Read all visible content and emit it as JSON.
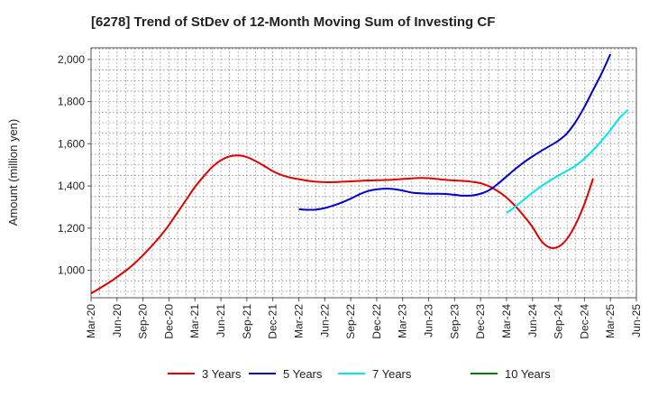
{
  "chart_data": {
    "type": "line",
    "title": "[6278]  Trend of StDev of 12-Month Moving Sum of Investing CF",
    "ylabel": "Amount (million yen)",
    "xlabel": "",
    "ylim": [
      870,
      2055
    ],
    "yticks": [
      1000,
      1200,
      1400,
      1600,
      1800,
      2000
    ],
    "ytick_labels": [
      "1,000",
      "1,200",
      "1,400",
      "1,600",
      "1,800",
      "2,000"
    ],
    "x_labels": [
      "Mar-20",
      "Jun-20",
      "Sep-20",
      "Dec-20",
      "Mar-21",
      "Jun-21",
      "Sep-21",
      "Dec-21",
      "Mar-22",
      "Jun-22",
      "Sep-22",
      "Dec-22",
      "Mar-23",
      "Jun-23",
      "Sep-23",
      "Dec-23",
      "Mar-24",
      "Jun-24",
      "Sep-24",
      "Dec-24",
      "Mar-25",
      "Jun-25"
    ],
    "grid": true,
    "legend_position": "bottom",
    "series": [
      {
        "name": "3 Years",
        "color": "#e00000",
        "points": [
          [
            "Mar-20",
            890
          ],
          [
            "Apr-20",
            915
          ],
          [
            "May-20",
            940
          ],
          [
            "Jun-20",
            968
          ],
          [
            "Jul-20",
            998
          ],
          [
            "Aug-20",
            1032
          ],
          [
            "Sep-20",
            1072
          ],
          [
            "Oct-20",
            1115
          ],
          [
            "Nov-20",
            1162
          ],
          [
            "Dec-20",
            1215
          ],
          [
            "Jan-21",
            1275
          ],
          [
            "Feb-21",
            1335
          ],
          [
            "Mar-21",
            1395
          ],
          [
            "Apr-21",
            1445
          ],
          [
            "May-21",
            1490
          ],
          [
            "Jun-21",
            1522
          ],
          [
            "Jul-21",
            1540
          ],
          [
            "Aug-21",
            1545
          ],
          [
            "Sep-21",
            1537
          ],
          [
            "Oct-21",
            1518
          ],
          [
            "Nov-21",
            1495
          ],
          [
            "Dec-21",
            1470
          ],
          [
            "Jan-22",
            1452
          ],
          [
            "Feb-22",
            1440
          ],
          [
            "Mar-22",
            1432
          ],
          [
            "Apr-22",
            1425
          ],
          [
            "May-22",
            1420
          ],
          [
            "Jun-22",
            1418
          ],
          [
            "Jul-22",
            1418
          ],
          [
            "Aug-22",
            1420
          ],
          [
            "Sep-22",
            1422
          ],
          [
            "Oct-22",
            1424
          ],
          [
            "Nov-22",
            1426
          ],
          [
            "Dec-22",
            1427
          ],
          [
            "Jan-23",
            1428
          ],
          [
            "Feb-23",
            1430
          ],
          [
            "Mar-23",
            1433
          ],
          [
            "Apr-23",
            1436
          ],
          [
            "May-23",
            1438
          ],
          [
            "Jun-23",
            1437
          ],
          [
            "Jul-23",
            1433
          ],
          [
            "Aug-23",
            1429
          ],
          [
            "Sep-23",
            1426
          ],
          [
            "Oct-23",
            1424
          ],
          [
            "Nov-23",
            1420
          ],
          [
            "Dec-23",
            1413
          ],
          [
            "Jan-24",
            1398
          ],
          [
            "Feb-24",
            1375
          ],
          [
            "Mar-24",
            1345
          ],
          [
            "Apr-24",
            1305
          ],
          [
            "May-24",
            1258
          ],
          [
            "Jun-24",
            1205
          ],
          [
            "Jul-24",
            1140
          ],
          [
            "Aug-24",
            1108
          ],
          [
            "Sep-24",
            1112
          ],
          [
            "Oct-24",
            1150
          ],
          [
            "Nov-24",
            1220
          ],
          [
            "Dec-24",
            1315
          ],
          [
            "Jan-25",
            1435
          ]
        ]
      },
      {
        "name": "5 Years",
        "color": "#0000cc",
        "points": [
          [
            "Mar-22",
            1290
          ],
          [
            "Apr-22",
            1287
          ],
          [
            "May-22",
            1288
          ],
          [
            "Jun-22",
            1295
          ],
          [
            "Jul-22",
            1307
          ],
          [
            "Aug-22",
            1322
          ],
          [
            "Sep-22",
            1340
          ],
          [
            "Oct-22",
            1360
          ],
          [
            "Nov-22",
            1376
          ],
          [
            "Dec-22",
            1384
          ],
          [
            "Jan-23",
            1387
          ],
          [
            "Feb-23",
            1385
          ],
          [
            "Mar-23",
            1378
          ],
          [
            "Apr-23",
            1369
          ],
          [
            "May-23",
            1365
          ],
          [
            "Jun-23",
            1363
          ],
          [
            "Jul-23",
            1363
          ],
          [
            "Aug-23",
            1362
          ],
          [
            "Sep-23",
            1358
          ],
          [
            "Oct-23",
            1354
          ],
          [
            "Nov-23",
            1355
          ],
          [
            "Dec-23",
            1363
          ],
          [
            "Jan-24",
            1380
          ],
          [
            "Feb-24",
            1410
          ],
          [
            "Mar-24",
            1445
          ],
          [
            "Apr-24",
            1480
          ],
          [
            "May-24",
            1512
          ],
          [
            "Jun-24",
            1540
          ],
          [
            "Jul-24",
            1566
          ],
          [
            "Aug-24",
            1590
          ],
          [
            "Sep-24",
            1615
          ],
          [
            "Oct-24",
            1650
          ],
          [
            "Nov-24",
            1705
          ],
          [
            "Dec-24",
            1775
          ],
          [
            "Jan-25",
            1855
          ],
          [
            "Feb-25",
            1935
          ],
          [
            "Mar-25",
            2025
          ]
        ]
      },
      {
        "name": "7 Years",
        "color": "#00e5ee",
        "points": [
          [
            "Mar-24",
            1272
          ],
          [
            "Apr-24",
            1302
          ],
          [
            "May-24",
            1335
          ],
          [
            "Jun-24",
            1368
          ],
          [
            "Jul-24",
            1398
          ],
          [
            "Aug-24",
            1425
          ],
          [
            "Sep-24",
            1450
          ],
          [
            "Oct-24",
            1472
          ],
          [
            "Nov-24",
            1497
          ],
          [
            "Dec-24",
            1530
          ],
          [
            "Jan-25",
            1570
          ],
          [
            "Feb-25",
            1615
          ],
          [
            "Mar-25",
            1665
          ],
          [
            "Apr-25",
            1720
          ],
          [
            "May-25",
            1760
          ]
        ]
      },
      {
        "name": "10 Years",
        "color": "#008000",
        "points": []
      }
    ]
  }
}
